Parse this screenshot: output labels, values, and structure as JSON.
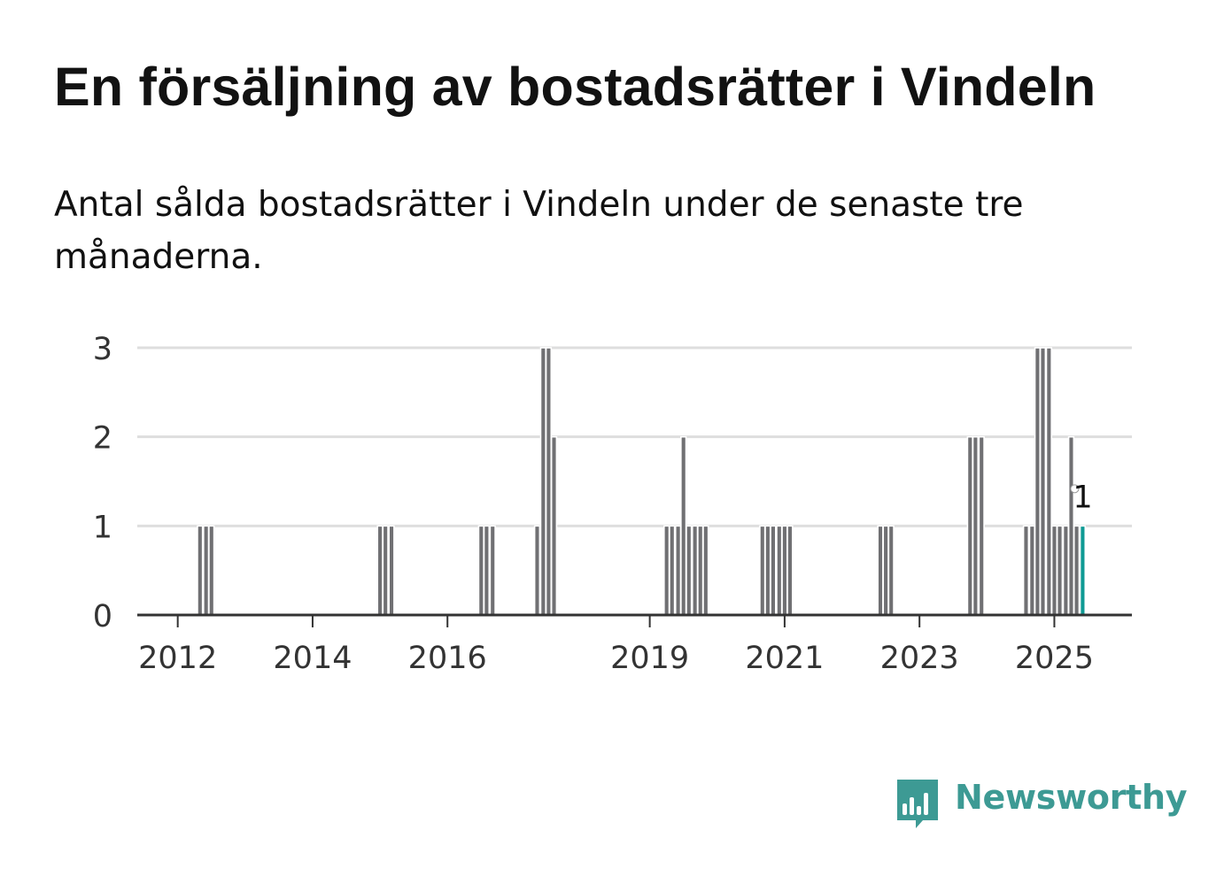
{
  "header": {
    "title": "En försäljning av bostadsrätter i Vindeln",
    "subtitle": "Antal sålda bostadsrätter i Vindeln under de senaste tre månaderna."
  },
  "brand": {
    "name": "Newsworthy",
    "color": "#3d9a94",
    "icon": "bar-chart-speech-bubble-icon"
  },
  "colors": {
    "bar": "#707073",
    "highlight": "#0f9a94",
    "grid": "#dedede",
    "axis": "#333333"
  },
  "chart_data": {
    "type": "bar",
    "y_ticks": [
      0,
      1,
      2,
      3
    ],
    "ylim": [
      0,
      3
    ],
    "x_ticks": [
      {
        "label": "2012",
        "x": 2012.0
      },
      {
        "label": "2014",
        "x": 2014.0
      },
      {
        "label": "2016",
        "x": 2016.0
      },
      {
        "label": "2019",
        "x": 2019.0
      },
      {
        "label": "2021",
        "x": 2021.0
      },
      {
        "label": "2023",
        "x": 2023.0
      },
      {
        "label": "2025",
        "x": 2025.0
      }
    ],
    "xlim": [
      2011.4,
      2026.15
    ],
    "bar_width_years": 0.075,
    "grid": true,
    "bars": [
      {
        "x": 2012.33,
        "y": 1
      },
      {
        "x": 2012.42,
        "y": 1
      },
      {
        "x": 2012.5,
        "y": 1
      },
      {
        "x": 2015.0,
        "y": 1
      },
      {
        "x": 2015.08,
        "y": 1
      },
      {
        "x": 2015.17,
        "y": 1
      },
      {
        "x": 2016.5,
        "y": 1
      },
      {
        "x": 2016.58,
        "y": 1
      },
      {
        "x": 2016.67,
        "y": 1
      },
      {
        "x": 2017.33,
        "y": 1
      },
      {
        "x": 2017.42,
        "y": 3
      },
      {
        "x": 2017.5,
        "y": 3
      },
      {
        "x": 2017.58,
        "y": 2
      },
      {
        "x": 2019.25,
        "y": 1
      },
      {
        "x": 2019.33,
        "y": 1
      },
      {
        "x": 2019.42,
        "y": 1
      },
      {
        "x": 2019.5,
        "y": 2
      },
      {
        "x": 2019.58,
        "y": 1
      },
      {
        "x": 2019.67,
        "y": 1
      },
      {
        "x": 2019.75,
        "y": 1
      },
      {
        "x": 2019.83,
        "y": 1
      },
      {
        "x": 2020.67,
        "y": 1
      },
      {
        "x": 2020.75,
        "y": 1
      },
      {
        "x": 2020.83,
        "y": 1
      },
      {
        "x": 2020.92,
        "y": 1
      },
      {
        "x": 2021.0,
        "y": 1
      },
      {
        "x": 2021.08,
        "y": 1
      },
      {
        "x": 2022.42,
        "y": 1
      },
      {
        "x": 2022.5,
        "y": 1
      },
      {
        "x": 2022.58,
        "y": 1
      },
      {
        "x": 2023.75,
        "y": 2
      },
      {
        "x": 2023.83,
        "y": 2
      },
      {
        "x": 2023.92,
        "y": 2
      },
      {
        "x": 2024.58,
        "y": 1
      },
      {
        "x": 2024.67,
        "y": 1
      },
      {
        "x": 2024.75,
        "y": 3
      },
      {
        "x": 2024.83,
        "y": 3
      },
      {
        "x": 2024.92,
        "y": 3
      },
      {
        "x": 2025.0,
        "y": 1
      },
      {
        "x": 2025.08,
        "y": 1
      },
      {
        "x": 2025.17,
        "y": 1
      },
      {
        "x": 2025.25,
        "y": 2
      },
      {
        "x": 2025.33,
        "y": 1
      },
      {
        "x": 2025.42,
        "y": 1,
        "highlight": true
      }
    ],
    "annotation": {
      "text": "1",
      "x": 2025.42,
      "y": 1
    }
  }
}
